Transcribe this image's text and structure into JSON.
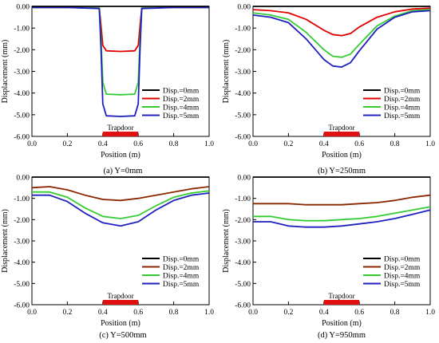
{
  "figure": {
    "background": "#ffffff",
    "series_colors": {
      "Disp.=0mm": "#000000",
      "Disp.=2mm": "#e00000",
      "Disp.=4mm": "#33cc33",
      "Disp.=5mm": "#1f1fbf",
      "Disp.=2mm (c,d)": "#8b2500"
    },
    "trapdoor_color": "#e01010"
  },
  "chart_data": [
    {
      "panel": "a",
      "type": "line",
      "caption": "(a) Y=0mm",
      "xlabel": "Position (m)",
      "ylabel": "Displacement (mm)",
      "xlim": [
        0.0,
        1.0
      ],
      "ylim": [
        -6.0,
        0.0
      ],
      "xticks": [
        "0.0",
        "0.2",
        "0.4",
        "0.6",
        "0.8",
        "1.0"
      ],
      "yticks": [
        "0.00",
        "-1.00",
        "-2.00",
        "-3.00",
        "-4.00",
        "-5.00",
        "-6.00"
      ],
      "legend_position": "bottom-right",
      "annotation": "Trapdoor",
      "trapdoor": [
        0.4,
        0.6
      ],
      "series": [
        {
          "name": "Disp.=0mm",
          "color": "#000000",
          "x": [
            0,
            0.2,
            0.4,
            0.6,
            0.8,
            1.0
          ],
          "y": [
            0,
            0,
            0,
            0,
            0,
            0
          ]
        },
        {
          "name": "Disp.=2mm",
          "color": "#e00000",
          "x": [
            0,
            0.2,
            0.38,
            0.39,
            0.4,
            0.42,
            0.5,
            0.58,
            0.6,
            0.61,
            0.62,
            0.8,
            1.0
          ],
          "y": [
            -0.05,
            -0.05,
            -0.08,
            -0.9,
            -1.8,
            -2.05,
            -2.08,
            -2.05,
            -1.8,
            -0.9,
            -0.08,
            -0.05,
            -0.05
          ]
        },
        {
          "name": "Disp.=4mm",
          "color": "#33cc33",
          "x": [
            0,
            0.2,
            0.38,
            0.39,
            0.4,
            0.42,
            0.5,
            0.58,
            0.6,
            0.61,
            0.62,
            0.8,
            1.0
          ],
          "y": [
            -0.05,
            -0.05,
            -0.08,
            -1.5,
            -3.5,
            -4.05,
            -4.08,
            -4.05,
            -3.5,
            -1.5,
            -0.08,
            -0.05,
            -0.05
          ]
        },
        {
          "name": "Disp.=5mm",
          "color": "#1f1fbf",
          "x": [
            0,
            0.2,
            0.38,
            0.39,
            0.4,
            0.42,
            0.5,
            0.58,
            0.6,
            0.61,
            0.62,
            0.8,
            1.0
          ],
          "y": [
            -0.05,
            -0.05,
            -0.1,
            -2.0,
            -4.5,
            -5.05,
            -5.08,
            -5.05,
            -4.5,
            -2.0,
            -0.1,
            -0.05,
            -0.05
          ]
        }
      ]
    },
    {
      "panel": "b",
      "type": "line",
      "caption": "(b) Y=250mm",
      "xlabel": "Position (m)",
      "ylabel": "Displacement (mm)",
      "xlim": [
        0.0,
        1.0
      ],
      "ylim": [
        -6.0,
        0.0
      ],
      "xticks": [
        "0.0",
        "0.2",
        "0.4",
        "0.6",
        "0.8",
        "1.0"
      ],
      "yticks": [
        "0.00",
        "-1.00",
        "-2.00",
        "-3.00",
        "-4.00",
        "-5.00",
        "-6.00"
      ],
      "legend_position": "bottom-right",
      "annotation": "Trapdoor",
      "trapdoor": [
        0.4,
        0.6
      ],
      "series": [
        {
          "name": "Disp.=0mm",
          "color": "#000000",
          "x": [
            0,
            0.2,
            0.4,
            0.6,
            0.8,
            1.0
          ],
          "y": [
            0,
            0,
            0,
            0,
            0,
            0
          ]
        },
        {
          "name": "Disp.=2mm",
          "color": "#e00000",
          "x": [
            0,
            0.1,
            0.2,
            0.3,
            0.4,
            0.45,
            0.5,
            0.55,
            0.6,
            0.7,
            0.8,
            0.9,
            1.0
          ],
          "y": [
            -0.15,
            -0.2,
            -0.3,
            -0.6,
            -1.1,
            -1.3,
            -1.35,
            -1.25,
            -0.95,
            -0.5,
            -0.25,
            -0.12,
            -0.08
          ]
        },
        {
          "name": "Disp.=4mm",
          "color": "#33cc33",
          "x": [
            0,
            0.1,
            0.2,
            0.3,
            0.4,
            0.45,
            0.5,
            0.55,
            0.6,
            0.7,
            0.8,
            0.9,
            1.0
          ],
          "y": [
            -0.3,
            -0.4,
            -0.6,
            -1.2,
            -2.0,
            -2.3,
            -2.35,
            -2.2,
            -1.75,
            -0.9,
            -0.45,
            -0.2,
            -0.15
          ]
        },
        {
          "name": "Disp.=5mm",
          "color": "#1f1fbf",
          "x": [
            0,
            0.1,
            0.2,
            0.3,
            0.4,
            0.45,
            0.5,
            0.55,
            0.6,
            0.7,
            0.8,
            0.9,
            1.0
          ],
          "y": [
            -0.4,
            -0.5,
            -0.75,
            -1.5,
            -2.45,
            -2.75,
            -2.8,
            -2.6,
            -2.05,
            -1.05,
            -0.5,
            -0.25,
            -0.2
          ]
        }
      ]
    },
    {
      "panel": "c",
      "type": "line",
      "caption": "(c) Y=500mm",
      "xlabel": "Position (m)",
      "ylabel": "Displacement (mm)",
      "xlim": [
        0.0,
        1.0
      ],
      "ylim": [
        -6.0,
        0.0
      ],
      "xticks": [
        "0.0",
        "0.2",
        "0.4",
        "0.6",
        "0.8",
        "1.0"
      ],
      "yticks": [
        "0.00",
        "-1.00",
        "-2.00",
        "-3.00",
        "-4.00",
        "-5.00",
        "-6.00"
      ],
      "legend_position": "bottom-right",
      "annotation": "Trapdoor",
      "trapdoor": [
        0.4,
        0.6
      ],
      "series": [
        {
          "name": "Disp.=0mm",
          "color": "#000000",
          "x": [
            0,
            0.2,
            0.4,
            0.6,
            0.8,
            1.0
          ],
          "y": [
            0,
            0,
            0,
            0,
            0,
            0
          ]
        },
        {
          "name": "Disp.=2mm",
          "color": "#8b2500",
          "x": [
            0,
            0.1,
            0.2,
            0.3,
            0.4,
            0.5,
            0.6,
            0.7,
            0.8,
            0.9,
            1.0
          ],
          "y": [
            -0.5,
            -0.45,
            -0.6,
            -0.85,
            -1.05,
            -1.1,
            -1.0,
            -0.85,
            -0.7,
            -0.55,
            -0.45
          ]
        },
        {
          "name": "Disp.=4mm",
          "color": "#33cc33",
          "x": [
            0,
            0.1,
            0.2,
            0.3,
            0.4,
            0.5,
            0.6,
            0.7,
            0.8,
            0.9,
            1.0
          ],
          "y": [
            -0.7,
            -0.7,
            -0.95,
            -1.45,
            -1.85,
            -1.95,
            -1.8,
            -1.35,
            -0.95,
            -0.75,
            -0.65
          ]
        },
        {
          "name": "Disp.=5mm",
          "color": "#1f1fbf",
          "x": [
            0,
            0.1,
            0.2,
            0.3,
            0.4,
            0.5,
            0.6,
            0.7,
            0.8,
            0.9,
            1.0
          ],
          "y": [
            -0.85,
            -0.85,
            -1.15,
            -1.7,
            -2.15,
            -2.3,
            -2.1,
            -1.55,
            -1.1,
            -0.85,
            -0.75
          ]
        }
      ]
    },
    {
      "panel": "d",
      "type": "line",
      "caption": "(d) Y=950mm",
      "xlabel": "Position (m)",
      "ylabel": "Displacement (mm)",
      "xlim": [
        0.0,
        1.0
      ],
      "ylim": [
        -6.0,
        0.0
      ],
      "xticks": [
        "0.0",
        "0.2",
        "0.4",
        "0.6",
        "0.8",
        "1.0"
      ],
      "yticks": [
        "0.00",
        "-1.00",
        "-2.00",
        "-3.00",
        "-4.00",
        "-5.00",
        "-6.00"
      ],
      "legend_position": "bottom-right",
      "annotation": "Trapdoor",
      "trapdoor": [
        0.4,
        0.6
      ],
      "series": [
        {
          "name": "Disp.=0mm",
          "color": "#000000",
          "x": [
            0,
            0.2,
            0.4,
            0.6,
            0.8,
            1.0
          ],
          "y": [
            0,
            0,
            0,
            0,
            0,
            0
          ]
        },
        {
          "name": "Disp.=2mm",
          "color": "#8b2500",
          "x": [
            0,
            0.1,
            0.2,
            0.3,
            0.4,
            0.5,
            0.6,
            0.7,
            0.8,
            0.9,
            1.0
          ],
          "y": [
            -1.25,
            -1.25,
            -1.25,
            -1.3,
            -1.3,
            -1.3,
            -1.25,
            -1.2,
            -1.1,
            -0.95,
            -0.85
          ]
        },
        {
          "name": "Disp.=4mm",
          "color": "#33cc33",
          "x": [
            0,
            0.1,
            0.2,
            0.3,
            0.4,
            0.5,
            0.6,
            0.7,
            0.8,
            0.9,
            1.0
          ],
          "y": [
            -1.85,
            -1.85,
            -2.0,
            -2.05,
            -2.05,
            -2.0,
            -1.95,
            -1.85,
            -1.7,
            -1.55,
            -1.4
          ]
        },
        {
          "name": "Disp.=5mm",
          "color": "#1f1fbf",
          "x": [
            0,
            0.1,
            0.2,
            0.3,
            0.4,
            0.5,
            0.6,
            0.7,
            0.8,
            0.9,
            1.0
          ],
          "y": [
            -2.1,
            -2.1,
            -2.3,
            -2.35,
            -2.35,
            -2.3,
            -2.2,
            -2.1,
            -1.95,
            -1.75,
            -1.55
          ]
        }
      ]
    }
  ]
}
